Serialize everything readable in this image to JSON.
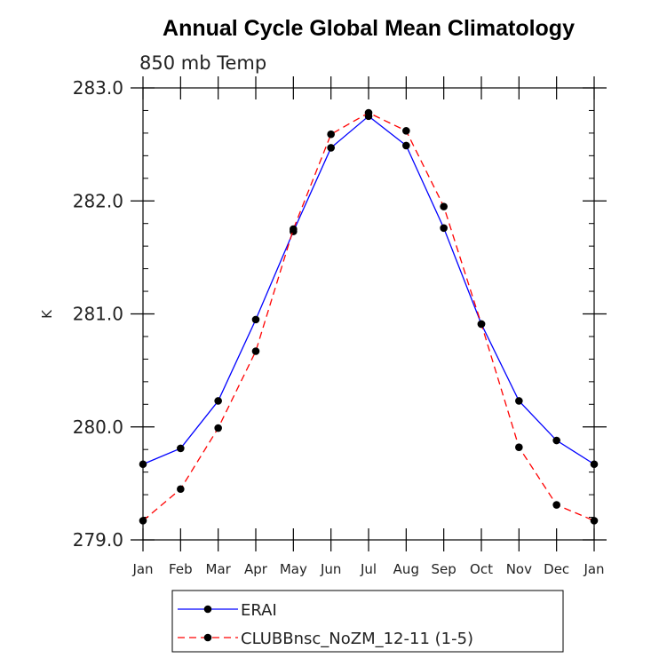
{
  "chart_data": {
    "type": "line",
    "title": "Annual Cycle Global Mean Climatology",
    "subtitle": "850 mb Temp",
    "xlabel": "",
    "ylabel": "K",
    "categories": [
      "Jan",
      "Feb",
      "Mar",
      "Apr",
      "May",
      "Jun",
      "Jul",
      "Aug",
      "Sep",
      "Oct",
      "Nov",
      "Dec",
      "Jan"
    ],
    "ylim": [
      279.0,
      283.0
    ],
    "y_major_ticks": [
      279.0,
      280.0,
      281.0,
      282.0,
      283.0
    ],
    "y_tick_labels": [
      "279.0",
      "280.0",
      "281.0",
      "282.0",
      "283.0"
    ],
    "y_minor_step": 0.2,
    "grid": false,
    "legend_position": "bottom",
    "series": [
      {
        "name": "ERAI",
        "color": "#0000ff",
        "dash": "solid",
        "values": [
          279.67,
          279.81,
          280.23,
          280.95,
          281.73,
          282.47,
          282.75,
          282.49,
          281.76,
          280.91,
          280.23,
          279.88,
          279.67
        ]
      },
      {
        "name": "CLUBBnsc_NoZM_12-11 (1-5)",
        "color": "#ff0000",
        "dash": "dashed",
        "values": [
          279.17,
          279.45,
          279.99,
          280.67,
          281.75,
          282.59,
          282.78,
          282.62,
          281.95,
          280.91,
          279.82,
          279.31,
          279.17
        ]
      }
    ]
  }
}
